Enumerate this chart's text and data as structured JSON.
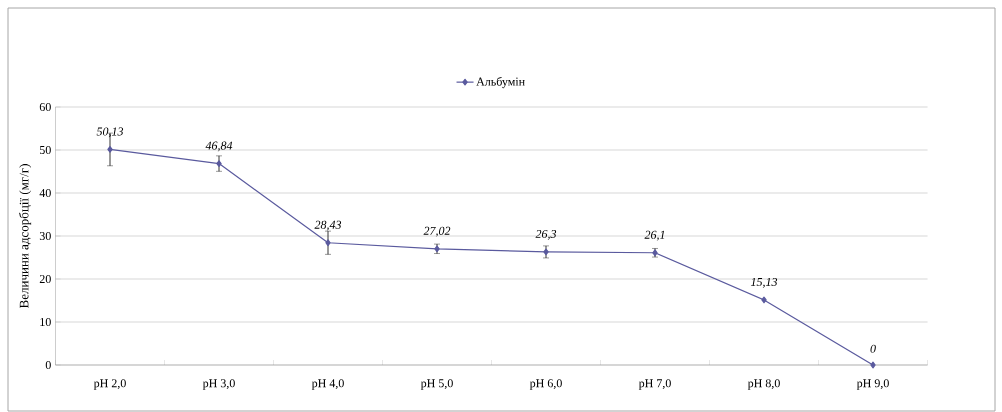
{
  "chart_data": {
    "type": "line",
    "ylabel": "Величини адсорбції  (мг/г)",
    "categories": [
      "pH 2,0",
      "pH 3,0",
      "pH 4,0",
      "pH 5,0",
      "pH 6,0",
      "pH 7,0",
      "pH 8,0",
      "pH 9,0"
    ],
    "series": [
      {
        "name": "Альбумін",
        "color": "#5a5a9e",
        "values": [
          50.13,
          46.84,
          28.43,
          27.02,
          26.3,
          26.1,
          15.13,
          0
        ],
        "errors": [
          3.8,
          1.8,
          2.7,
          1.1,
          1.4,
          1.0,
          null,
          null
        ],
        "value_labels": [
          "50,13",
          "46,84",
          "28,43",
          "27,02",
          "26,3",
          "26,1",
          "15,13",
          "0"
        ]
      }
    ],
    "ylim": [
      0,
      60
    ],
    "yticks": [
      0,
      10,
      20,
      30,
      40,
      50,
      60
    ],
    "grid": "y",
    "legend": "top",
    "marker": "diamond"
  }
}
